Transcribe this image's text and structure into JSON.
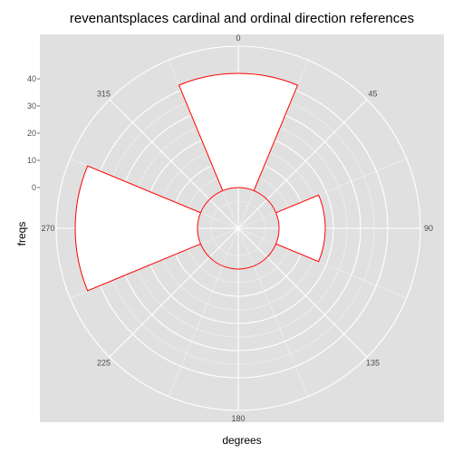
{
  "chart_data": {
    "type": "polar-bar",
    "title": "revenantsplaces cardinal and ordinal direction references",
    "xlabel": "degrees",
    "ylabel": "freqs",
    "angle_ticks": [
      "0",
      "45",
      "90",
      "135",
      "180",
      "225",
      "270",
      "315"
    ],
    "radial_ticks": [
      "0",
      "10",
      "20",
      "30",
      "40"
    ],
    "radial_range": [
      -15,
      52
    ],
    "bar_width_degrees": 45,
    "bars": [
      {
        "angle": 0,
        "value": 42
      },
      {
        "angle": 45,
        "value": 0
      },
      {
        "angle": 90,
        "value": 17
      },
      {
        "angle": 135,
        "value": 0
      },
      {
        "angle": 180,
        "value": 0
      },
      {
        "angle": 225,
        "value": 0
      },
      {
        "angle": 270,
        "value": 45
      },
      {
        "angle": 315,
        "value": 0
      }
    ],
    "panel_color": "#e0e0e0",
    "grid_color": "#ffffff",
    "bar_fill": "#ffffff",
    "bar_outline": "#ff0000"
  }
}
